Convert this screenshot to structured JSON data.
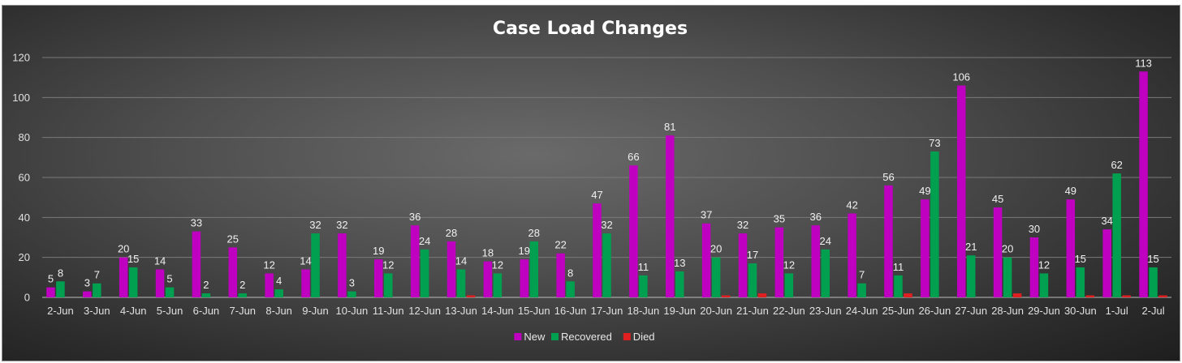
{
  "chart_data": {
    "type": "bar",
    "title": "Case Load Changes",
    "xlabel": "",
    "ylabel": "",
    "ylim": [
      0,
      120
    ],
    "yticks": [
      0,
      20,
      40,
      60,
      80,
      100,
      120
    ],
    "grid": true,
    "legend_position": "bottom",
    "categories": [
      "2-Jun",
      "3-Jun",
      "4-Jun",
      "5-Jun",
      "6-Jun",
      "7-Jun",
      "8-Jun",
      "9-Jun",
      "10-Jun",
      "11-Jun",
      "12-Jun",
      "13-Jun",
      "14-Jun",
      "15-Jun",
      "16-Jun",
      "17-Jun",
      "18-Jun",
      "19-Jun",
      "20-Jun",
      "21-Jun",
      "22-Jun",
      "23-Jun",
      "24-Jun",
      "25-Jun",
      "26-Jun",
      "27-Jun",
      "28-Jun",
      "29-Jun",
      "30-Jun",
      "1-Jul",
      "2-Jul"
    ],
    "series": [
      {
        "name": "New",
        "color": "#c000c0",
        "values": [
          5,
          3,
          20,
          14,
          33,
          25,
          12,
          14,
          32,
          19,
          36,
          28,
          18,
          19,
          22,
          47,
          66,
          81,
          37,
          32,
          35,
          36,
          42,
          56,
          49,
          106,
          45,
          30,
          49,
          34,
          113
        ],
        "show_labels": true
      },
      {
        "name": "Recovered",
        "color": "#00a050",
        "values": [
          8,
          7,
          15,
          5,
          2,
          2,
          4,
          32,
          3,
          12,
          24,
          14,
          12,
          28,
          8,
          32,
          11,
          13,
          20,
          17,
          12,
          24,
          7,
          11,
          73,
          21,
          20,
          12,
          15,
          62,
          15
        ],
        "show_labels": true
      },
      {
        "name": "Died",
        "color": "#e02020",
        "values": [
          0,
          0,
          0,
          0,
          0,
          0,
          0,
          0,
          0,
          0,
          0,
          1,
          0,
          0,
          0,
          0,
          0,
          0,
          1,
          2,
          0,
          0,
          0,
          2,
          0,
          0,
          2,
          0,
          1,
          1,
          1
        ],
        "show_labels": false
      }
    ]
  }
}
